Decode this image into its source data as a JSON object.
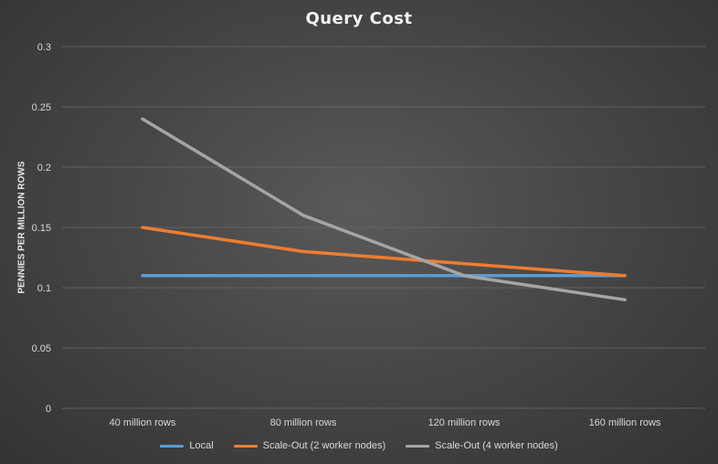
{
  "chart_data": {
    "type": "line",
    "title": "Query Cost",
    "xlabel": "",
    "ylabel": "PENNIES PER MILLION ROWS",
    "categories": [
      "40 million rows",
      "80 million rows",
      "120 million rows",
      "160 million rows"
    ],
    "yticks": [
      "0",
      "0.05",
      "0.1",
      "0.15",
      "0.2",
      "0.25",
      "0.3"
    ],
    "ylim": [
      0,
      0.3
    ],
    "grid": true,
    "legend_position": "bottom",
    "series": [
      {
        "name": "Local",
        "color": "#5b9bd5",
        "values": [
          0.11,
          0.11,
          0.11,
          0.11
        ]
      },
      {
        "name": "Scale-Out (2 worker nodes)",
        "color": "#ed7d31",
        "values": [
          0.15,
          0.13,
          0.12,
          0.11
        ]
      },
      {
        "name": "Scale-Out (4 worker nodes)",
        "color": "#a5a5a5",
        "values": [
          0.24,
          0.16,
          0.11,
          0.09
        ]
      }
    ]
  }
}
